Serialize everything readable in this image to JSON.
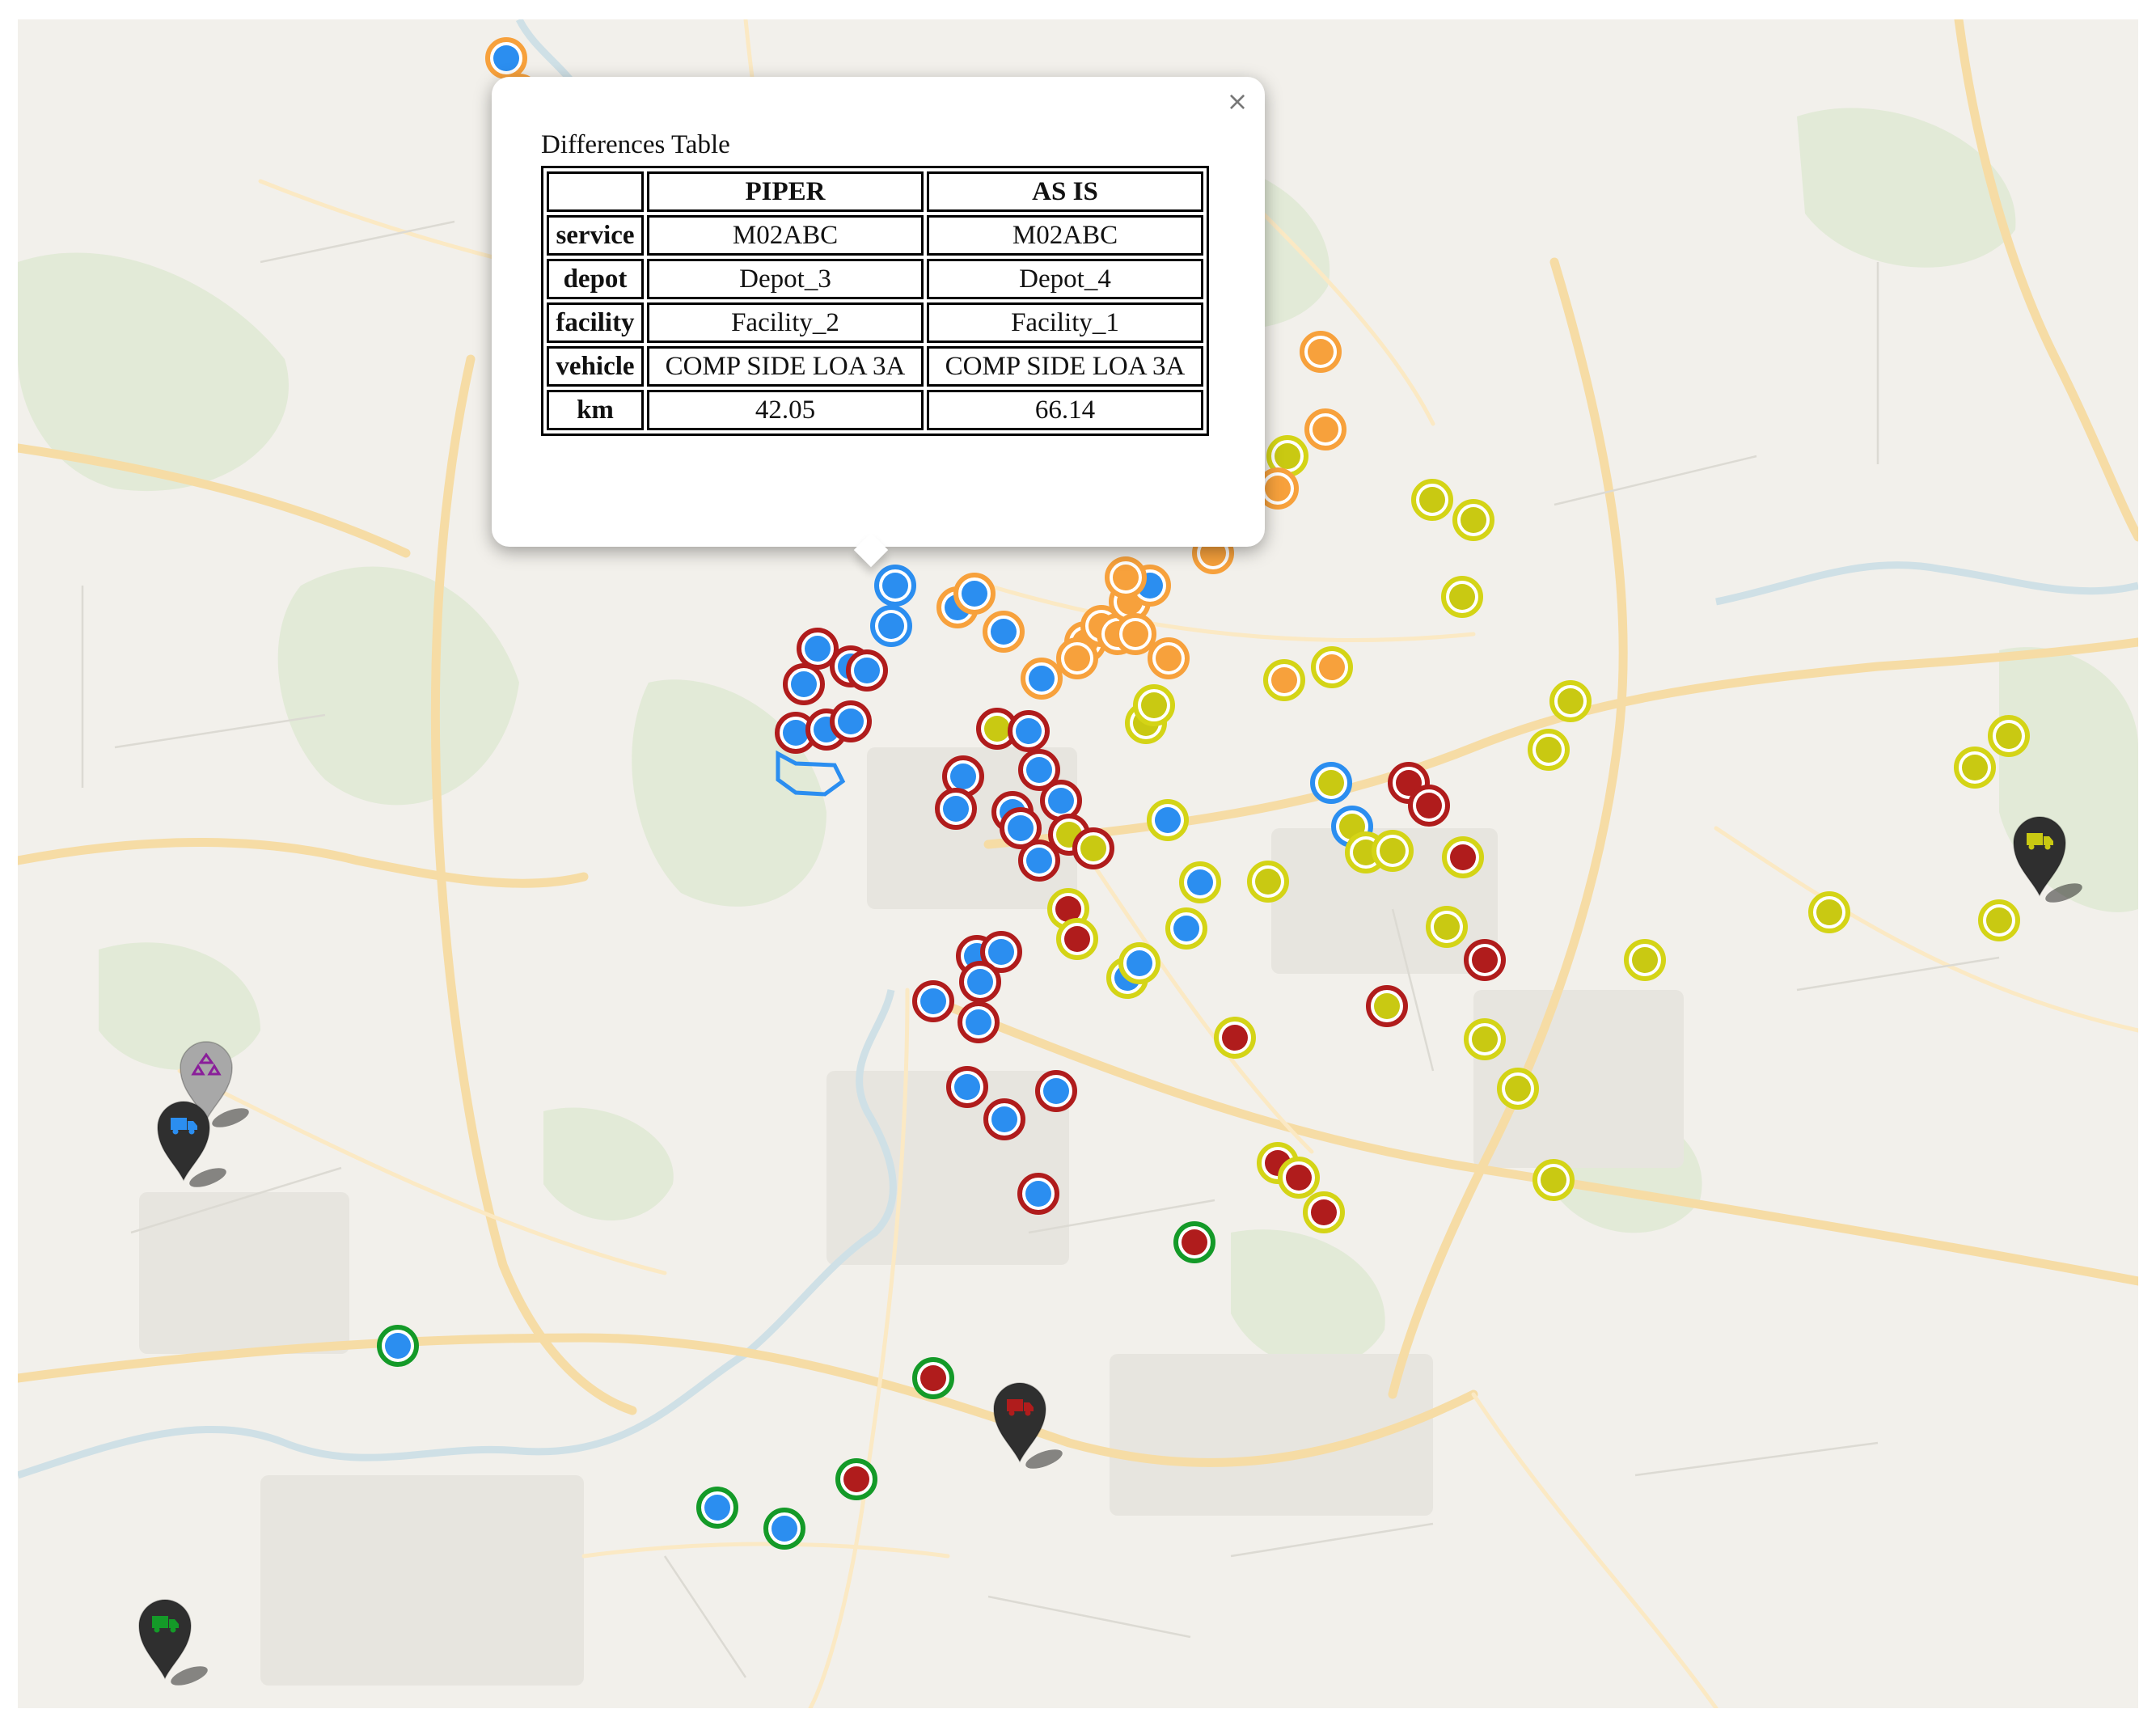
{
  "popup": {
    "title": "Differences Table",
    "close_glyph": "×",
    "table": {
      "headers": [
        "",
        "PIPER",
        "AS IS"
      ],
      "rows": [
        {
          "label": "service",
          "piper": "M02ABC",
          "as_is": "M02ABC"
        },
        {
          "label": "depot",
          "piper": "Depot_3",
          "as_is": "Depot_4"
        },
        {
          "label": "facility",
          "piper": "Facility_2",
          "as_is": "Facility_1"
        },
        {
          "label": "vehicle",
          "piper": "COMP SIDE LOA 3A",
          "as_is": "COMP SIDE LOA 3A"
        },
        {
          "label": "km",
          "piper": "42.05",
          "as_is": "66.14"
        }
      ]
    }
  },
  "legend_colors": {
    "blue_fill": "#2b8ef0",
    "yellow_fill": "#c9c912",
    "red_fill": "#b01c1c",
    "orange_fill": "#f7a13c",
    "red_ring": "#b01c1c",
    "blue_ring": "#2b8ef0",
    "yellow_ring": "#d4d416",
    "orange_ring": "#f7a13c",
    "green_ring": "#149a28",
    "marker_dark": "#2f2f2f",
    "marker_grey": "#a8a8a8"
  },
  "depot_markers": [
    {
      "icon": "recycle-icon",
      "body": "grey",
      "icon_color": "#8a1f9a"
    },
    {
      "icon": "truck-icon",
      "body": "dark",
      "icon_color": "#2b8ef0"
    },
    {
      "icon": "truck-icon",
      "body": "dark",
      "icon_color": "#c9c912"
    },
    {
      "icon": "truck-icon",
      "body": "dark",
      "icon_color": "#b01c1c"
    },
    {
      "icon": "truck-icon",
      "body": "dark",
      "icon_color": "#149a28"
    }
  ]
}
